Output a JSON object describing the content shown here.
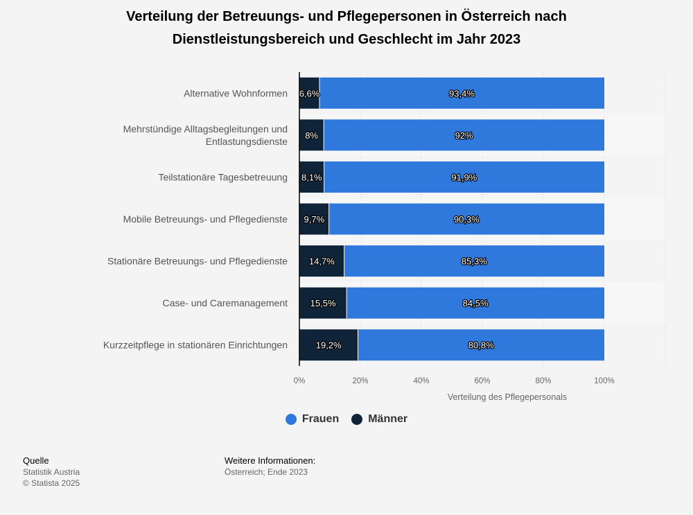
{
  "title": {
    "line1": "Verteilung der Betreuungs- und Pflegepersonen in Österreich nach",
    "line2": "Dienstleistungsbereich und Geschlecht im Jahr 2023"
  },
  "colors": {
    "frauen": "#2f78dc",
    "maenner": "#0f2438",
    "band": "#f7f7f7"
  },
  "chart_data": {
    "type": "bar",
    "orientation": "horizontal",
    "stacked": true,
    "categories": [
      [
        "Alternative Wohnformen"
      ],
      [
        "Mehrstündige Alltagsbegleitungen und",
        "Entlastungsdienste"
      ],
      [
        "Teilstationäre Tagesbetreuung"
      ],
      [
        "Mobile Betreuungs- und Pflegedienste"
      ],
      [
        "Stationäre Betreuungs- und Pflegedienste"
      ],
      [
        "Case- und Caremanagement"
      ],
      [
        "Kurzzeitpflege in stationären Einrichtungen"
      ]
    ],
    "series": [
      {
        "name": "Männer",
        "values": [
          6.6,
          8,
          8.1,
          9.7,
          14.7,
          15.5,
          19.2
        ],
        "labels": [
          "6,6%",
          "8%",
          "8,1%",
          "9,7%",
          "14,7%",
          "15,5%",
          "19,2%"
        ]
      },
      {
        "name": "Frauen",
        "values": [
          93.4,
          92,
          91.9,
          90.3,
          85.3,
          84.5,
          80.8
        ],
        "labels": [
          "93,4%",
          "92%",
          "91,9%",
          "90,3%",
          "85,3%",
          "84,5%",
          "80,8%"
        ]
      }
    ],
    "xlim": [
      0,
      120
    ],
    "xticks": [
      0,
      20,
      40,
      60,
      80,
      100
    ],
    "xtick_labels": [
      "0%",
      "20%",
      "40%",
      "60%",
      "80%",
      "100%"
    ],
    "xlabel": "Verteilung des Pflegepersonals",
    "grid": true,
    "legend_position": "bottom-center"
  },
  "legend": {
    "frauen": "Frauen",
    "maenner": "Männer"
  },
  "footer": {
    "source_head": "Quelle",
    "source_line1": "Statistik Austria",
    "source_line2": "© Statista 2025",
    "info_head": "Weitere Informationen:",
    "info_line1": "Österreich; Ende 2023"
  }
}
